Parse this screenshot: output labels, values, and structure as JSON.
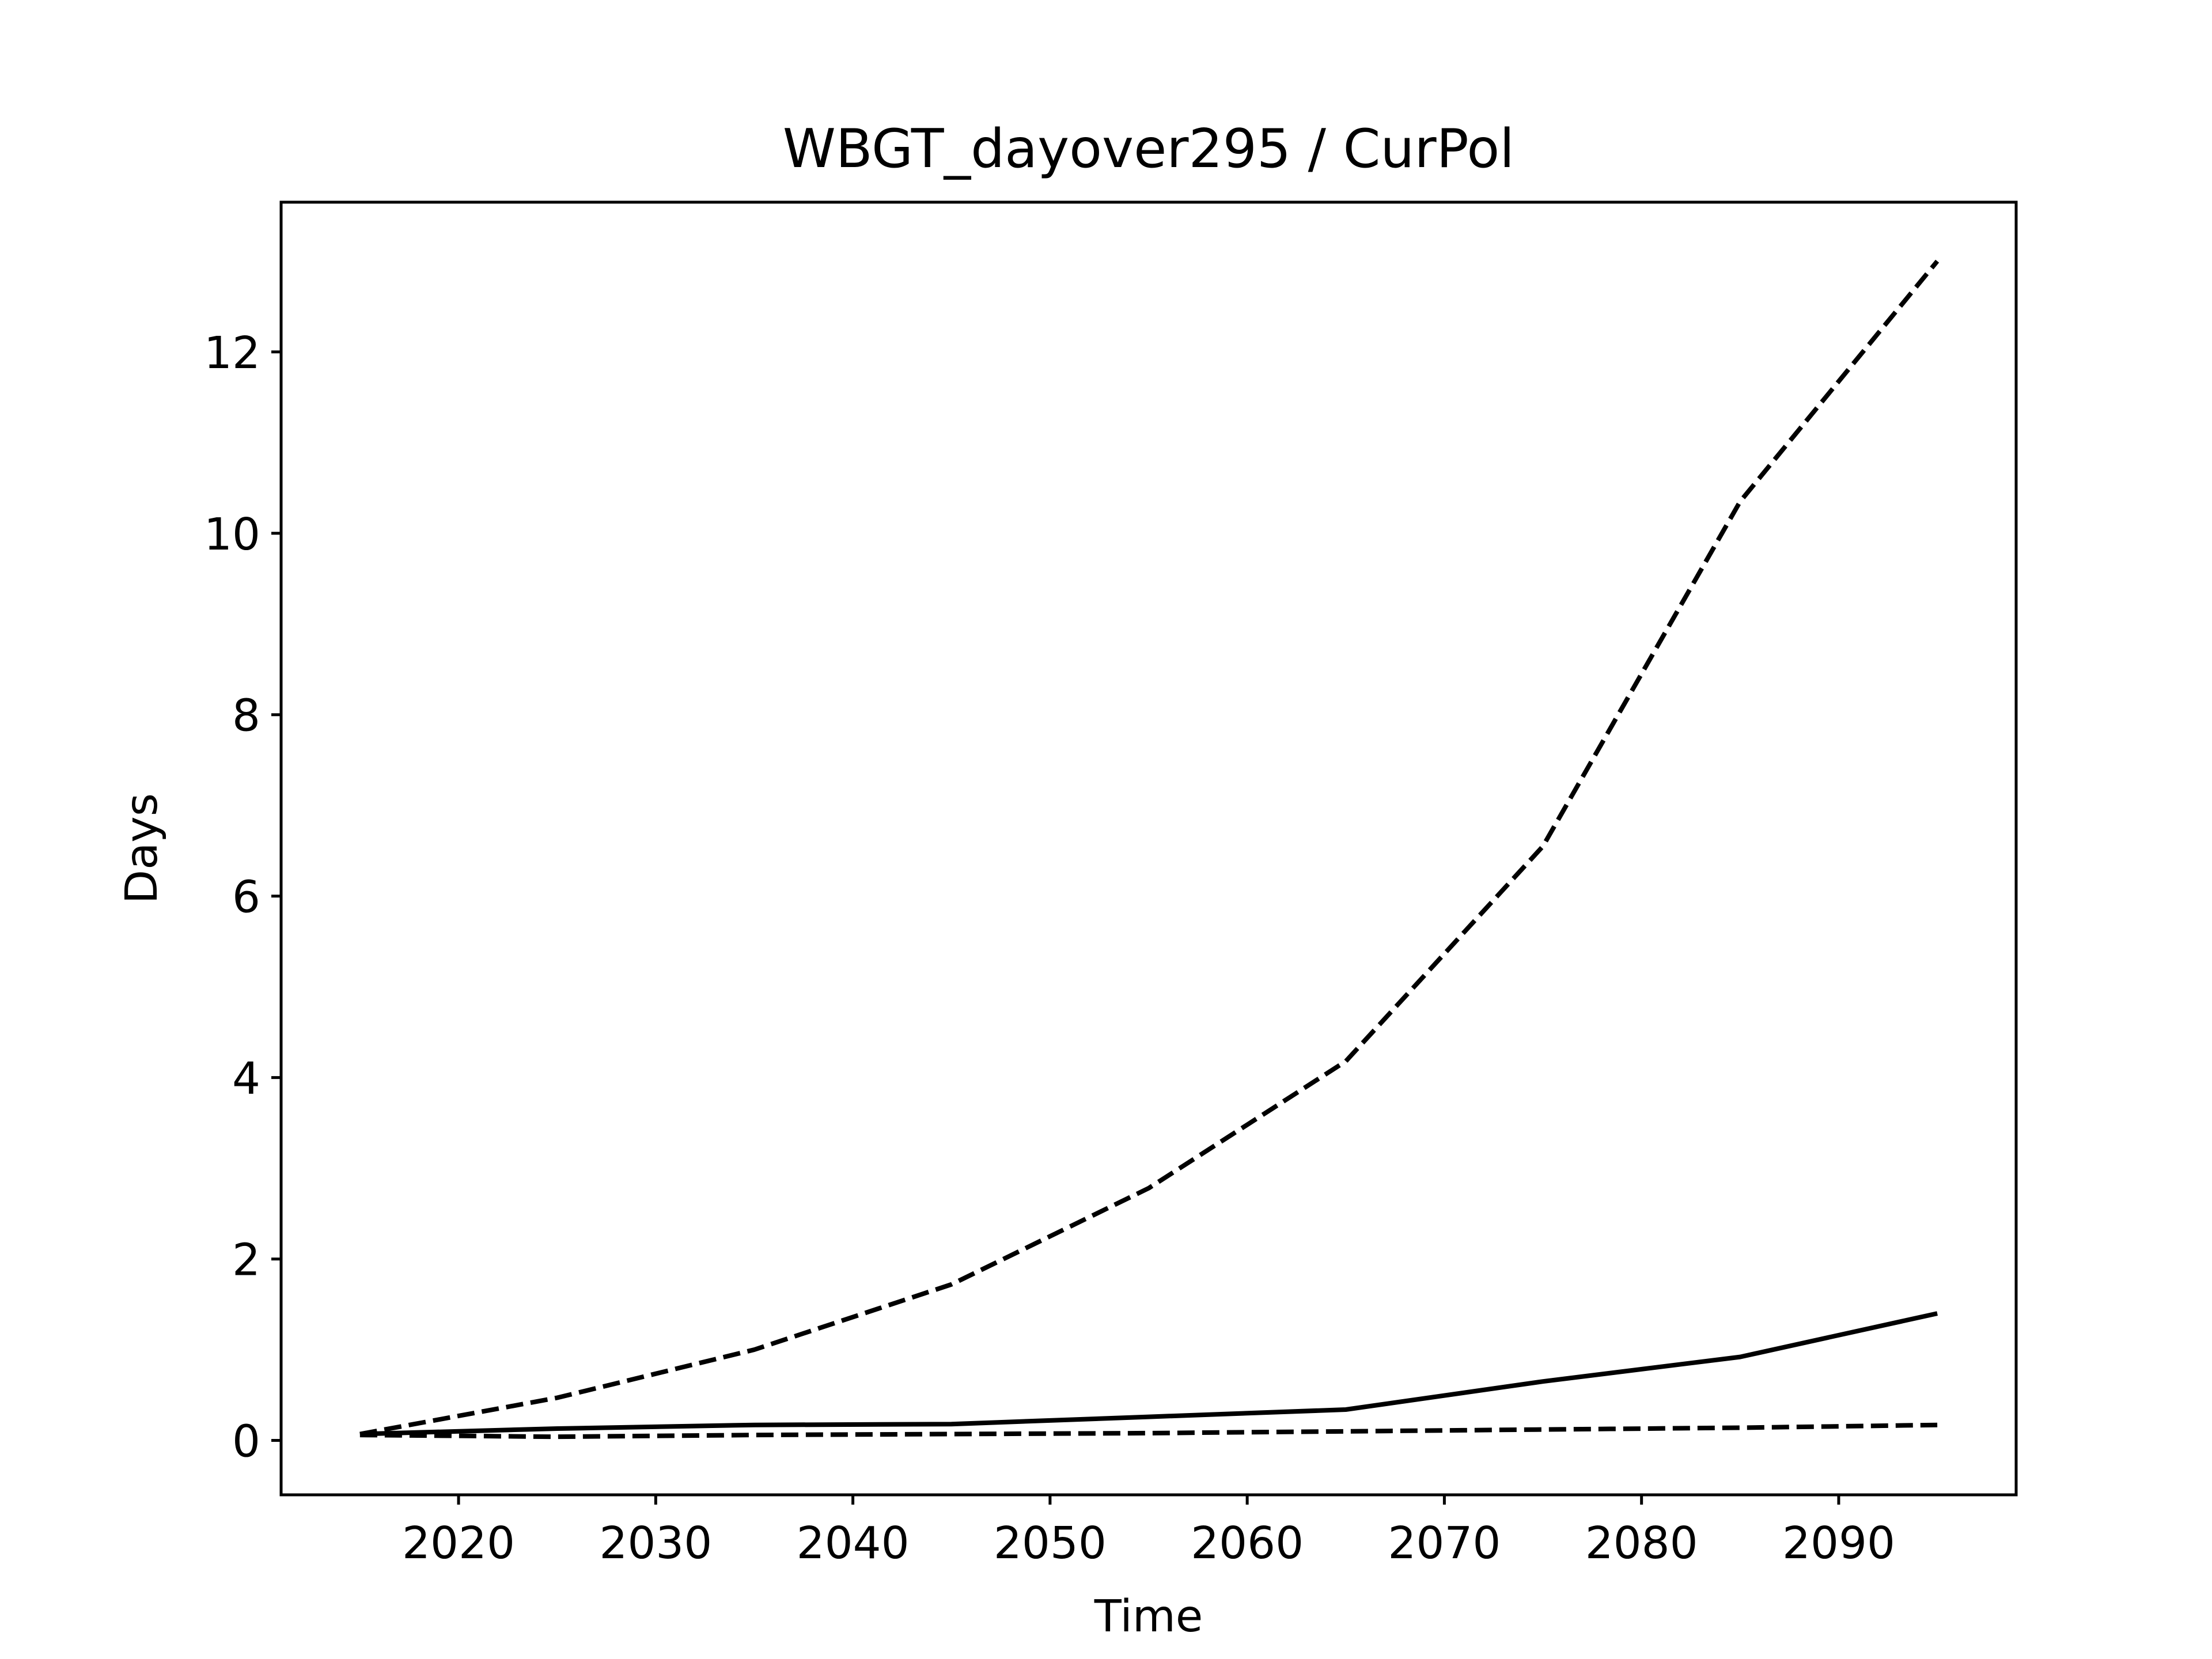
{
  "chart_data": {
    "type": "line",
    "title": "WBGT_dayover295 / CurPol",
    "xlabel": "Time",
    "ylabel": "Days",
    "xlim": [
      2011,
      2099
    ],
    "ylim": [
      -0.6,
      13.65
    ],
    "xticks": [
      2020,
      2030,
      2040,
      2050,
      2060,
      2070,
      2080,
      2090
    ],
    "yticks": [
      0,
      2,
      4,
      6,
      8,
      10,
      12
    ],
    "grid": false,
    "legend": "none",
    "series": [
      {
        "style": "dashed",
        "color": "#000000",
        "x": [
          2015,
          2025,
          2035,
          2045,
          2055,
          2065,
          2075,
          2085,
          2095
        ],
        "y": [
          0.07,
          0.47,
          1.0,
          1.72,
          2.78,
          4.18,
          6.55,
          10.35,
          13.0
        ]
      },
      {
        "style": "solid",
        "color": "#000000",
        "x": [
          2015,
          2025,
          2035,
          2045,
          2055,
          2065,
          2075,
          2085,
          2095
        ],
        "y": [
          0.07,
          0.13,
          0.17,
          0.18,
          0.26,
          0.34,
          0.65,
          0.92,
          1.4
        ]
      },
      {
        "style": "dashed",
        "color": "#000000",
        "x": [
          2015,
          2025,
          2035,
          2045,
          2055,
          2065,
          2075,
          2085,
          2095
        ],
        "y": [
          0.06,
          0.04,
          0.06,
          0.07,
          0.08,
          0.1,
          0.12,
          0.14,
          0.17
        ]
      }
    ]
  }
}
